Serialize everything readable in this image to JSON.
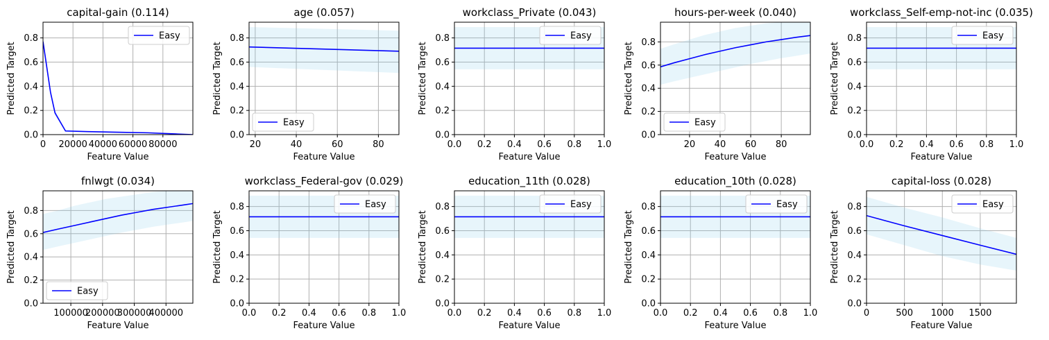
{
  "colors": {
    "line": "#0000ff",
    "band_fill": "#87ceeb",
    "grid": "#b0b0b0",
    "axis": "#000000",
    "legend_border": "#cccccc"
  },
  "chart_data": [
    {
      "type": "line",
      "title": "capital-gain (0.114)",
      "xlabel": "Feature Value",
      "ylabel": "Predicted Target",
      "xlim": [
        0,
        99999
      ],
      "ylim": [
        0,
        0.93
      ],
      "xticks": [
        0,
        20000,
        40000,
        60000,
        80000
      ],
      "xtick_labels": [
        "0",
        "20000",
        "40000",
        "60000",
        "80000"
      ],
      "yticks": [
        0.0,
        0.2,
        0.4,
        0.6,
        0.8
      ],
      "ytick_labels": [
        "0.0",
        "0.2",
        "0.4",
        "0.6",
        "0.8"
      ],
      "grid": true,
      "legend": "top-right",
      "series": [
        {
          "name": "Easy",
          "x": [
            0,
            5000,
            8000,
            15000,
            30000,
            50000,
            70000,
            90000,
            99999
          ],
          "y": [
            0.77,
            0.35,
            0.18,
            0.03,
            0.025,
            0.02,
            0.015,
            0.005,
            0.0
          ],
          "y_lower": [
            0.74,
            0.32,
            0.16,
            0.02,
            0.02,
            0.015,
            0.01,
            0.003,
            0.0
          ],
          "y_upper": [
            0.8,
            0.38,
            0.2,
            0.04,
            0.03,
            0.025,
            0.02,
            0.008,
            0.002
          ]
        }
      ]
    },
    {
      "type": "line",
      "title": "age (0.057)",
      "xlabel": "Feature Value",
      "ylabel": "Predicted Target",
      "xlim": [
        17,
        90
      ],
      "ylim": [
        0,
        0.93
      ],
      "xticks": [
        20,
        40,
        60,
        80
      ],
      "xtick_labels": [
        "20",
        "40",
        "60",
        "80"
      ],
      "yticks": [
        0.0,
        0.2,
        0.4,
        0.6,
        0.8
      ],
      "ytick_labels": [
        "0.0",
        "0.2",
        "0.4",
        "0.6",
        "0.8"
      ],
      "grid": true,
      "legend": "bottom-left",
      "series": [
        {
          "name": "Easy",
          "x": [
            17,
            90
          ],
          "y": [
            0.725,
            0.69
          ],
          "y_lower": [
            0.56,
            0.51
          ],
          "y_upper": [
            0.89,
            0.86
          ]
        }
      ]
    },
    {
      "type": "line",
      "title": "workclass_Private (0.043)",
      "xlabel": "Feature Value",
      "ylabel": "Predicted Target",
      "xlim": [
        0,
        1
      ],
      "ylim": [
        0,
        0.93
      ],
      "xticks": [
        0,
        0.2,
        0.4,
        0.6,
        0.8,
        1.0
      ],
      "xtick_labels": [
        "0.0",
        "0.2",
        "0.4",
        "0.6",
        "0.8",
        "1.0"
      ],
      "yticks": [
        0.0,
        0.2,
        0.4,
        0.6,
        0.8
      ],
      "ytick_labels": [
        "0.0",
        "0.2",
        "0.4",
        "0.6",
        "0.8"
      ],
      "grid": true,
      "legend": "top-right",
      "series": [
        {
          "name": "Easy",
          "x": [
            0,
            1
          ],
          "y": [
            0.715,
            0.715
          ],
          "y_lower": [
            0.54,
            0.54
          ],
          "y_upper": [
            0.89,
            0.89
          ]
        }
      ]
    },
    {
      "type": "line",
      "title": "hours-per-week (0.040)",
      "xlabel": "Feature Value",
      "ylabel": "Predicted Target",
      "xlim": [
        1,
        99
      ],
      "ylim": [
        0,
        0.97
      ],
      "xticks": [
        20,
        40,
        60,
        80
      ],
      "xtick_labels": [
        "20",
        "40",
        "60",
        "80"
      ],
      "yticks": [
        0.0,
        0.2,
        0.4,
        0.6,
        0.8
      ],
      "ytick_labels": [
        "0.0",
        "0.2",
        "0.4",
        "0.6",
        "0.8"
      ],
      "grid": true,
      "legend": "bottom-left",
      "series": [
        {
          "name": "Easy",
          "x": [
            1,
            10,
            20,
            30,
            40,
            50,
            60,
            70,
            80,
            90,
            99
          ],
          "y": [
            0.585,
            0.62,
            0.655,
            0.69,
            0.72,
            0.75,
            0.775,
            0.8,
            0.82,
            0.84,
            0.855
          ],
          "y_lower": [
            0.43,
            0.46,
            0.49,
            0.52,
            0.55,
            0.58,
            0.61,
            0.635,
            0.66,
            0.68,
            0.7
          ],
          "y_upper": [
            0.74,
            0.78,
            0.82,
            0.86,
            0.89,
            0.92,
            0.94,
            0.96,
            0.97,
            0.97,
            0.97
          ]
        }
      ]
    },
    {
      "type": "line",
      "title": "workclass_Self-emp-not-inc (0.035)",
      "xlabel": "Feature Value",
      "ylabel": "Predicted Target",
      "xlim": [
        0,
        1
      ],
      "ylim": [
        0,
        0.93
      ],
      "xticks": [
        0,
        0.2,
        0.4,
        0.6,
        0.8,
        1.0
      ],
      "xtick_labels": [
        "0.0",
        "0.2",
        "0.4",
        "0.6",
        "0.8",
        "1.0"
      ],
      "yticks": [
        0.0,
        0.2,
        0.4,
        0.6,
        0.8
      ],
      "ytick_labels": [
        "0.0",
        "0.2",
        "0.4",
        "0.6",
        "0.8"
      ],
      "grid": true,
      "legend": "top-right",
      "series": [
        {
          "name": "Easy",
          "x": [
            0,
            1
          ],
          "y": [
            0.715,
            0.715
          ],
          "y_lower": [
            0.54,
            0.54
          ],
          "y_upper": [
            0.89,
            0.89
          ]
        }
      ]
    },
    {
      "type": "line",
      "title": "fnlwgt (0.034)",
      "xlabel": "Feature Value",
      "ylabel": "Predicted Target",
      "xlim": [
        12285,
        484705
      ],
      "ylim": [
        0,
        0.97
      ],
      "xticks": [
        100000,
        200000,
        300000,
        400000
      ],
      "xtick_labels": [
        "100000",
        "200000",
        "300000",
        "400000"
      ],
      "yticks": [
        0.0,
        0.2,
        0.4,
        0.6,
        0.8
      ],
      "ytick_labels": [
        "0.0",
        "0.2",
        "0.4",
        "0.6",
        "0.8"
      ],
      "grid": true,
      "legend": "bottom-left",
      "series": [
        {
          "name": "Easy",
          "x": [
            12285,
            60000,
            110000,
            160000,
            210000,
            260000,
            310000,
            360000,
            410000,
            460000,
            484705
          ],
          "y": [
            0.61,
            0.64,
            0.67,
            0.7,
            0.73,
            0.76,
            0.785,
            0.81,
            0.83,
            0.85,
            0.86
          ],
          "y_lower": [
            0.46,
            0.49,
            0.52,
            0.55,
            0.58,
            0.61,
            0.635,
            0.66,
            0.68,
            0.7,
            0.71
          ],
          "y_upper": [
            0.77,
            0.8,
            0.84,
            0.87,
            0.9,
            0.92,
            0.94,
            0.96,
            0.97,
            0.97,
            0.97
          ]
        }
      ]
    },
    {
      "type": "line",
      "title": "workclass_Federal-gov (0.029)",
      "xlabel": "Feature Value",
      "ylabel": "Predicted Target",
      "xlim": [
        0,
        1
      ],
      "ylim": [
        0,
        0.93
      ],
      "xticks": [
        0,
        0.2,
        0.4,
        0.6,
        0.8,
        1.0
      ],
      "xtick_labels": [
        "0.0",
        "0.2",
        "0.4",
        "0.6",
        "0.8",
        "1.0"
      ],
      "yticks": [
        0.0,
        0.2,
        0.4,
        0.6,
        0.8
      ],
      "ytick_labels": [
        "0.0",
        "0.2",
        "0.4",
        "0.6",
        "0.8"
      ],
      "grid": true,
      "legend": "top-right",
      "series": [
        {
          "name": "Easy",
          "x": [
            0,
            1
          ],
          "y": [
            0.715,
            0.715
          ],
          "y_lower": [
            0.54,
            0.54
          ],
          "y_upper": [
            0.89,
            0.89
          ]
        }
      ]
    },
    {
      "type": "line",
      "title": "education_11th (0.028)",
      "xlabel": "Feature Value",
      "ylabel": "Predicted Target",
      "xlim": [
        0,
        1
      ],
      "ylim": [
        0,
        0.93
      ],
      "xticks": [
        0,
        0.2,
        0.4,
        0.6,
        0.8,
        1.0
      ],
      "xtick_labels": [
        "0.0",
        "0.2",
        "0.4",
        "0.6",
        "0.8",
        "1.0"
      ],
      "yticks": [
        0.0,
        0.2,
        0.4,
        0.6,
        0.8
      ],
      "ytick_labels": [
        "0.0",
        "0.2",
        "0.4",
        "0.6",
        "0.8"
      ],
      "grid": true,
      "legend": "top-right",
      "series": [
        {
          "name": "Easy",
          "x": [
            0,
            1
          ],
          "y": [
            0.715,
            0.715
          ],
          "y_lower": [
            0.54,
            0.54
          ],
          "y_upper": [
            0.89,
            0.89
          ]
        }
      ]
    },
    {
      "type": "line",
      "title": "education_10th (0.028)",
      "xlabel": "Feature Value",
      "ylabel": "Predicted Target",
      "xlim": [
        0,
        1
      ],
      "ylim": [
        0,
        0.93
      ],
      "xticks": [
        0,
        0.2,
        0.4,
        0.6,
        0.8,
        1.0
      ],
      "xtick_labels": [
        "0.0",
        "0.2",
        "0.4",
        "0.6",
        "0.8",
        "1.0"
      ],
      "yticks": [
        0.0,
        0.2,
        0.4,
        0.6,
        0.8
      ],
      "ytick_labels": [
        "0.0",
        "0.2",
        "0.4",
        "0.6",
        "0.8"
      ],
      "grid": true,
      "legend": "top-right",
      "series": [
        {
          "name": "Easy",
          "x": [
            0,
            1
          ],
          "y": [
            0.715,
            0.715
          ],
          "y_lower": [
            0.54,
            0.54
          ],
          "y_upper": [
            0.89,
            0.89
          ]
        }
      ]
    },
    {
      "type": "line",
      "title": "capital-loss (0.028)",
      "xlabel": "Feature Value",
      "ylabel": "Predicted Target",
      "xlim": [
        0,
        1977
      ],
      "ylim": [
        0,
        0.93
      ],
      "xticks": [
        0,
        500,
        1000,
        1500
      ],
      "xtick_labels": [
        "0",
        "500",
        "1000",
        "1500"
      ],
      "yticks": [
        0.0,
        0.2,
        0.4,
        0.6,
        0.8
      ],
      "ytick_labels": [
        "0.0",
        "0.2",
        "0.4",
        "0.6",
        "0.8"
      ],
      "grid": true,
      "legend": "top-right",
      "series": [
        {
          "name": "Easy",
          "x": [
            0,
            500,
            1000,
            1500,
            1977
          ],
          "y": [
            0.725,
            0.64,
            0.56,
            0.48,
            0.405
          ],
          "y_lower": [
            0.57,
            0.48,
            0.39,
            0.32,
            0.27
          ],
          "y_upper": [
            0.88,
            0.79,
            0.71,
            0.62,
            0.54
          ]
        }
      ]
    }
  ]
}
